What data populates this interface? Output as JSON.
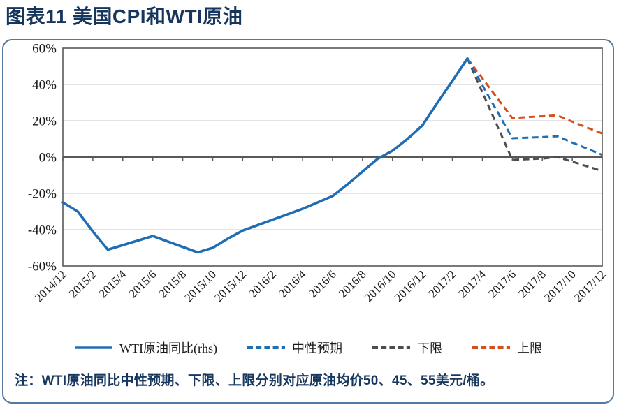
{
  "header": {
    "title": "图表11 美国CPI和WTI原油"
  },
  "note": {
    "text": "注：WTI原油同比中性预期、下限、上限分别对应原油均价50、45、55美元/桶。"
  },
  "chart_data": {
    "type": "line",
    "title": "美国CPI和WTI原油",
    "xlabel": "",
    "ylabel": "",
    "ylim": [
      -60,
      60
    ],
    "y_tick_step": 20,
    "y_tick_format": "percent",
    "grid": "horizontal",
    "legend_position": "bottom",
    "axis_color": "#595959",
    "grid_color": "#D2D2D2",
    "x_label_every": 2,
    "x": [
      "2014/12",
      "2015/1",
      "2015/2",
      "2015/3",
      "2015/4",
      "2015/5",
      "2015/6",
      "2015/7",
      "2015/8",
      "2015/9",
      "2015/10",
      "2015/11",
      "2015/12",
      "2016/1",
      "2016/2",
      "2016/3",
      "2016/4",
      "2016/5",
      "2016/6",
      "2016/7",
      "2016/8",
      "2016/9",
      "2016/10",
      "2016/11",
      "2016/12",
      "2017/1",
      "2017/2",
      "2017/3",
      "2017/4",
      "2017/5",
      "2017/6",
      "2017/7",
      "2017/8",
      "2017/9",
      "2017/10",
      "2017/11",
      "2017/12"
    ],
    "x_tick_labels": [
      "2014/12",
      "2015/2",
      "2015/4",
      "2015/6",
      "2015/8",
      "2015/10",
      "2015/12",
      "2016/2",
      "2016/4",
      "2016/6",
      "2016/8",
      "2016/10",
      "2016/12",
      "2017/2",
      "2017/4",
      "2017/6",
      "2017/8",
      "2017/10",
      "2017/12"
    ],
    "series": [
      {
        "name": "WTI原油同比(rhs)",
        "style": "solid",
        "color": "#1F6EB4",
        "values": [
          -25,
          -30,
          -41,
          -51,
          -48.5,
          -46,
          -43.5,
          -46.5,
          -49.5,
          -52.5,
          -50,
          -45,
          -40.5,
          -37.5,
          -34.5,
          -31.5,
          -28.5,
          -25,
          -21.5,
          -15,
          -8,
          -1,
          3.5,
          10,
          17.5,
          30,
          42,
          54.3,
          null,
          null,
          null,
          null,
          null,
          null,
          null,
          null,
          null
        ]
      },
      {
        "name": "中性预期",
        "style": "dashed",
        "color": "#1F6EB4",
        "values": [
          null,
          null,
          null,
          null,
          null,
          null,
          null,
          null,
          null,
          null,
          null,
          null,
          null,
          null,
          null,
          null,
          null,
          null,
          null,
          null,
          null,
          null,
          null,
          null,
          null,
          null,
          null,
          54.3,
          39.6,
          25,
          10.4,
          10.7,
          11,
          11.5,
          8,
          4.6,
          1.2
        ]
      },
      {
        "name": "下限",
        "style": "dashed",
        "color": "#4D4D4D",
        "values": [
          null,
          null,
          null,
          null,
          null,
          null,
          null,
          null,
          null,
          null,
          null,
          null,
          null,
          null,
          null,
          null,
          null,
          null,
          null,
          null,
          null,
          null,
          null,
          null,
          null,
          null,
          null,
          54.3,
          35.7,
          17.1,
          -1.5,
          -1.2,
          -0.8,
          0,
          -2.5,
          -5.1,
          -7.7
        ]
      },
      {
        "name": "上限",
        "style": "dashed",
        "color": "#D4511E",
        "values": [
          null,
          null,
          null,
          null,
          null,
          null,
          null,
          null,
          null,
          null,
          null,
          null,
          null,
          null,
          null,
          null,
          null,
          null,
          null,
          null,
          null,
          null,
          null,
          null,
          null,
          null,
          null,
          54.3,
          43.4,
          32.4,
          21.5,
          22,
          22.5,
          23,
          19.5,
          16.2,
          13
        ]
      }
    ]
  }
}
